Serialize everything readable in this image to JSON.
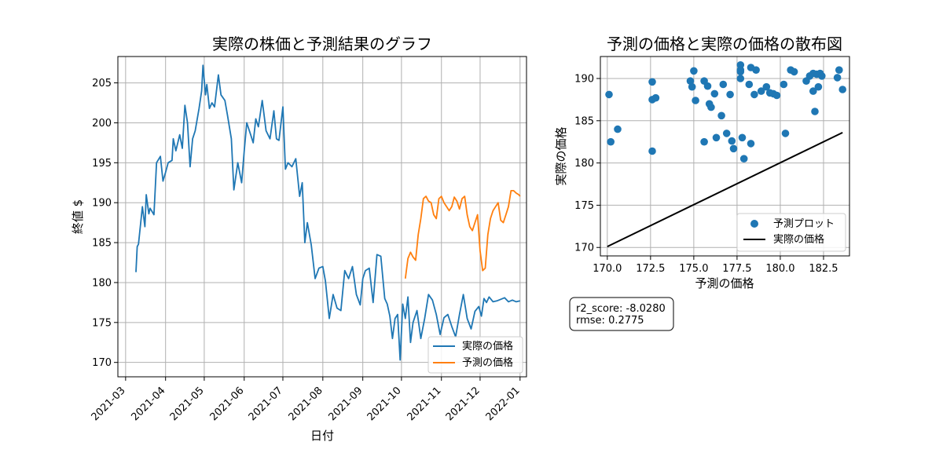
{
  "chart_data": [
    {
      "type": "line",
      "title": "実際の株価と予測結果のグラフ",
      "xlabel": "日付",
      "ylabel": "終値 $",
      "x_range": [
        "2021-02-23",
        "2022-01-06"
      ],
      "xtick_labels": [
        "2021-03",
        "2021-04",
        "2021-05",
        "2021-06",
        "2021-07",
        "2021-08",
        "2021-09",
        "2021-10",
        "2021-11",
        "2021-12",
        "2022-01"
      ],
      "xtick_dates": [
        "2021-03-01",
        "2021-04-01",
        "2021-05-01",
        "2021-06-01",
        "2021-07-01",
        "2021-08-01",
        "2021-09-01",
        "2021-10-01",
        "2021-11-01",
        "2021-12-01",
        "2022-01-01"
      ],
      "ylim": [
        168.2,
        208.3
      ],
      "yticks": [
        170,
        175,
        180,
        185,
        190,
        195,
        200,
        205
      ],
      "grid": true,
      "legend_position": "lower-right",
      "series": [
        {
          "name": "実際の価格",
          "color": "#1f77b4",
          "x": [
            "2021-03-09",
            "2021-03-10",
            "2021-03-11",
            "2021-03-14",
            "2021-03-16",
            "2021-03-17",
            "2021-03-19",
            "2021-03-20",
            "2021-03-23",
            "2021-03-25",
            "2021-03-28",
            "2021-03-30",
            "2021-04-01",
            "2021-04-03",
            "2021-04-06",
            "2021-04-07",
            "2021-04-09",
            "2021-04-12",
            "2021-04-14",
            "2021-04-16",
            "2021-04-18",
            "2021-04-20",
            "2021-04-22",
            "2021-04-24",
            "2021-04-27",
            "2021-04-29",
            "2021-04-30",
            "2021-05-02",
            "2021-05-03",
            "2021-05-05",
            "2021-05-07",
            "2021-05-09",
            "2021-05-12",
            "2021-05-14",
            "2021-05-17",
            "2021-05-19",
            "2021-05-22",
            "2021-05-24",
            "2021-05-27",
            "2021-05-30",
            "2021-06-01",
            "2021-06-03",
            "2021-06-06",
            "2021-06-08",
            "2021-06-10",
            "2021-06-12",
            "2021-06-15",
            "2021-06-18",
            "2021-06-21",
            "2021-06-24",
            "2021-06-26",
            "2021-06-28",
            "2021-07-01",
            "2021-07-03",
            "2021-07-05",
            "2021-07-08",
            "2021-07-11",
            "2021-07-14",
            "2021-07-16",
            "2021-07-18",
            "2021-07-20",
            "2021-07-23",
            "2021-07-26",
            "2021-07-29",
            "2021-08-01",
            "2021-08-03",
            "2021-08-06",
            "2021-08-09",
            "2021-08-12",
            "2021-08-15",
            "2021-08-18",
            "2021-08-21",
            "2021-08-24",
            "2021-08-27",
            "2021-08-30",
            "2021-09-01",
            "2021-09-03",
            "2021-09-06",
            "2021-09-09",
            "2021-09-12",
            "2021-09-15",
            "2021-09-18",
            "2021-09-20",
            "2021-09-22",
            "2021-09-24",
            "2021-09-26",
            "2021-09-28",
            "2021-09-30",
            "2021-10-02",
            "2021-10-04",
            "2021-10-06",
            "2021-10-08",
            "2021-10-10",
            "2021-10-13",
            "2021-10-16",
            "2021-10-19",
            "2021-10-22",
            "2021-10-25",
            "2021-10-28",
            "2021-10-31",
            "2021-11-03",
            "2021-11-06",
            "2021-11-09",
            "2021-11-12",
            "2021-11-15",
            "2021-11-18",
            "2021-11-21",
            "2021-11-24",
            "2021-11-27",
            "2021-11-30",
            "2021-12-02",
            "2021-12-04",
            "2021-12-06",
            "2021-12-08",
            "2021-12-11",
            "2021-12-14",
            "2021-12-17",
            "2021-12-20",
            "2021-12-23",
            "2021-12-26",
            "2021-12-29",
            "2022-01-01"
          ],
          "values": [
            181.3,
            184.5,
            184.8,
            189.5,
            187.0,
            191.0,
            188.6,
            189.3,
            188.5,
            195.0,
            195.8,
            192.7,
            193.8,
            195.0,
            195.3,
            198.0,
            196.5,
            198.5,
            196.8,
            202.2,
            200.0,
            194.5,
            198.0,
            199.0,
            201.8,
            204.0,
            207.2,
            203.5,
            204.8,
            201.8,
            202.5,
            202.0,
            206.0,
            203.5,
            202.8,
            201.0,
            198.0,
            191.6,
            195.0,
            192.5,
            196.5,
            200.0,
            198.5,
            197.5,
            200.5,
            199.5,
            202.8,
            199.0,
            198.0,
            201.5,
            198.0,
            197.8,
            202.0,
            194.2,
            195.0,
            194.5,
            195.5,
            190.8,
            192.5,
            185.0,
            187.5,
            184.7,
            180.5,
            181.8,
            182.0,
            180.2,
            175.5,
            178.5,
            176.8,
            176.5,
            181.5,
            180.5,
            182.0,
            178.5,
            177.2,
            180.5,
            181.5,
            181.8,
            177.5,
            183.5,
            183.3,
            178.0,
            177.3,
            175.8,
            173.0,
            175.5,
            176.0,
            170.3,
            177.3,
            175.5,
            178.2,
            172.5,
            175.0,
            176.5,
            173.0,
            175.5,
            178.5,
            177.8,
            176.0,
            173.5,
            175.6,
            176.0,
            174.5,
            173.2,
            176.0,
            178.5,
            175.5,
            174.2,
            176.4,
            177.0,
            175.8,
            178.0,
            177.5,
            178.2,
            177.6,
            177.7,
            177.9,
            178.1,
            177.6,
            177.8,
            177.6,
            177.7
          ]
        },
        {
          "name": "予測の価格",
          "color": "#ff7f0e",
          "x": [
            "2021-10-04",
            "2021-10-06",
            "2021-10-08",
            "2021-10-10",
            "2021-10-12",
            "2021-10-14",
            "2021-10-16",
            "2021-10-18",
            "2021-10-20",
            "2021-10-22",
            "2021-10-24",
            "2021-10-26",
            "2021-10-28",
            "2021-10-30",
            "2021-11-01",
            "2021-11-03",
            "2021-11-05",
            "2021-11-07",
            "2021-11-09",
            "2021-11-11",
            "2021-11-13",
            "2021-11-15",
            "2021-11-17",
            "2021-11-19",
            "2021-11-21",
            "2021-11-23",
            "2021-11-25",
            "2021-11-27",
            "2021-11-29",
            "2021-12-01",
            "2021-12-03",
            "2021-12-05",
            "2021-12-07",
            "2021-12-09",
            "2021-12-11",
            "2021-12-13",
            "2021-12-15",
            "2021-12-17",
            "2021-12-19",
            "2021-12-21",
            "2021-12-23",
            "2021-12-25",
            "2021-12-27",
            "2021-12-29",
            "2021-12-31",
            "2022-01-01"
          ],
          "values": [
            180.5,
            183.0,
            183.8,
            183.2,
            182.8,
            186.0,
            188.0,
            190.5,
            190.8,
            190.2,
            190.0,
            188.5,
            188.0,
            190.5,
            190.8,
            190.0,
            189.5,
            189.0,
            189.5,
            190.7,
            190.2,
            189.2,
            190.5,
            190.8,
            188.5,
            187.0,
            186.5,
            187.5,
            188.5,
            184.0,
            181.5,
            181.8,
            186.0,
            188.0,
            189.0,
            189.5,
            190.0,
            187.8,
            187.5,
            188.5,
            189.5,
            191.5,
            191.5,
            191.2,
            191.0,
            190.8
          ]
        }
      ]
    },
    {
      "type": "scatter",
      "title": "予測の価格と実際の価格の散布図",
      "xlabel": "予測の価格",
      "ylabel": "実際の価格",
      "xlim": [
        169.6,
        184.0
      ],
      "ylim": [
        169.0,
        192.6
      ],
      "xticks": [
        170.0,
        172.5,
        175.0,
        177.5,
        180.0,
        182.5
      ],
      "yticks": [
        170,
        175,
        180,
        185,
        190
      ],
      "grid": true,
      "legend_position": "lower-right",
      "series": [
        {
          "name": "予測プロット",
          "color": "#1f77b4",
          "marker": "dot",
          "x": [
            170.1,
            170.2,
            170.6,
            172.6,
            172.6,
            172.6,
            172.8,
            174.8,
            174.9,
            175.0,
            175.1,
            175.6,
            175.6,
            175.8,
            175.9,
            176.0,
            176.2,
            176.3,
            176.6,
            176.7,
            176.9,
            177.1,
            177.2,
            177.3,
            177.7,
            177.7,
            177.7,
            177.7,
            177.8,
            177.9,
            178.2,
            178.3,
            178.3,
            178.5,
            178.6,
            178.9,
            179.2,
            179.4,
            179.6,
            179.8,
            180.2,
            180.3,
            180.6,
            180.8,
            181.5,
            181.7,
            181.9,
            181.9,
            182.0,
            182.1,
            182.2,
            182.3,
            182.4,
            183.3,
            183.4,
            183.6
          ],
          "y": [
            188.1,
            182.5,
            184.0,
            181.4,
            187.5,
            189.6,
            187.7,
            189.7,
            189.0,
            190.9,
            187.4,
            189.7,
            182.5,
            189.1,
            187.0,
            186.6,
            188.2,
            183.0,
            185.6,
            189.3,
            183.5,
            188.1,
            182.6,
            181.7,
            191.6,
            190.8,
            190.0,
            191.0,
            183.0,
            180.5,
            189.3,
            191.3,
            182.3,
            188.1,
            191.0,
            188.5,
            189.0,
            188.3,
            188.2,
            188.0,
            189.3,
            183.5,
            191.0,
            190.8,
            189.7,
            190.3,
            190.6,
            188.5,
            186.1,
            190.5,
            189.0,
            190.6,
            190.3,
            190.1,
            191.0,
            188.7
          ]
        },
        {
          "name": "実際の価格",
          "color": "#000000",
          "marker": "line",
          "x": [
            170.0,
            183.6
          ],
          "y": [
            170.1,
            183.6
          ]
        }
      ]
    }
  ],
  "stats_box": {
    "r2_line": "r2_score: -8.0280",
    "rmse_line": "rmse: 0.2775"
  }
}
